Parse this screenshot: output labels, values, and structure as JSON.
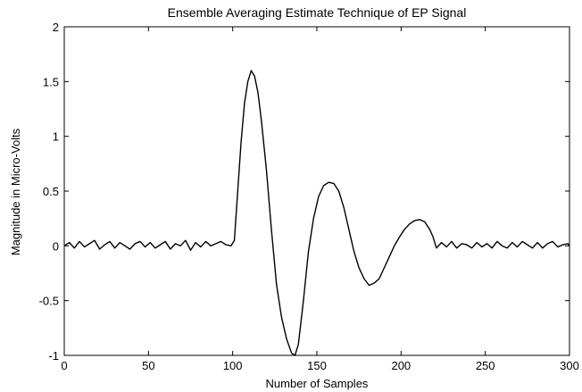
{
  "chart_data": {
    "type": "line",
    "title": "Ensemble Averaging Estimate Technique of EP Signal",
    "xlabel": "Number of Samples",
    "ylabel": "Magnitude in Micro-Volts",
    "xlim": [
      0,
      300
    ],
    "ylim": [
      -1,
      2
    ],
    "grid": false,
    "legend": "none",
    "x_ticks": [
      0,
      50,
      100,
      150,
      200,
      250,
      300
    ],
    "x_tick_labels": [
      "0",
      "50",
      "100",
      "150",
      "200",
      "250",
      "300"
    ],
    "y_ticks": [
      -1,
      -0.5,
      0,
      0.5,
      1,
      1.5,
      2
    ],
    "y_tick_labels": [
      "-1",
      "-0.5",
      "0",
      "0.5",
      "1",
      "1.5",
      "2"
    ],
    "series": [
      {
        "color": "#000000",
        "x": [
          0,
          3,
          6,
          9,
          12,
          15,
          18,
          21,
          24,
          27,
          30,
          33,
          36,
          39,
          42,
          45,
          48,
          51,
          54,
          57,
          60,
          63,
          66,
          69,
          72,
          75,
          78,
          81,
          84,
          87,
          90,
          93,
          96,
          99,
          101,
          103,
          105,
          107,
          109,
          111,
          113,
          115,
          117,
          120,
          123,
          126,
          129,
          132,
          135,
          137,
          139,
          142,
          145,
          148,
          151,
          154,
          157,
          160,
          163,
          166,
          169,
          172,
          175,
          178,
          181,
          184,
          187,
          190,
          193,
          196,
          199,
          202,
          205,
          208,
          211,
          214,
          217,
          219,
          221,
          224,
          227,
          230,
          233,
          236,
          239,
          242,
          245,
          248,
          251,
          254,
          257,
          260,
          263,
          266,
          269,
          272,
          275,
          278,
          281,
          284,
          287,
          290,
          293,
          296,
          299,
          300
        ],
        "y": [
          0.0,
          0.03,
          -0.02,
          0.04,
          -0.01,
          0.02,
          0.05,
          -0.03,
          0.01,
          0.04,
          -0.02,
          0.03,
          0.0,
          -0.03,
          0.02,
          0.04,
          -0.01,
          0.03,
          -0.02,
          0.01,
          0.04,
          -0.03,
          0.02,
          0.0,
          0.05,
          -0.04,
          0.03,
          -0.01,
          0.04,
          0.0,
          0.02,
          0.04,
          0.01,
          0.0,
          0.05,
          0.5,
          0.95,
          1.3,
          1.5,
          1.6,
          1.55,
          1.4,
          1.15,
          0.7,
          0.15,
          -0.35,
          -0.65,
          -0.85,
          -0.98,
          -1.0,
          -0.9,
          -0.5,
          -0.05,
          0.25,
          0.45,
          0.55,
          0.58,
          0.57,
          0.5,
          0.35,
          0.15,
          -0.05,
          -0.2,
          -0.3,
          -0.36,
          -0.34,
          -0.3,
          -0.2,
          -0.1,
          0.0,
          0.08,
          0.15,
          0.2,
          0.23,
          0.24,
          0.22,
          0.15,
          0.08,
          -0.02,
          0.03,
          -0.01,
          0.04,
          -0.02,
          0.02,
          0.01,
          -0.02,
          0.03,
          -0.01,
          0.02,
          -0.02,
          0.04,
          0.0,
          -0.02,
          0.03,
          -0.01,
          0.04,
          0.01,
          -0.02,
          0.03,
          -0.02,
          0.02,
          0.04,
          -0.01,
          0.01,
          0.02,
          0.0
        ]
      }
    ]
  }
}
